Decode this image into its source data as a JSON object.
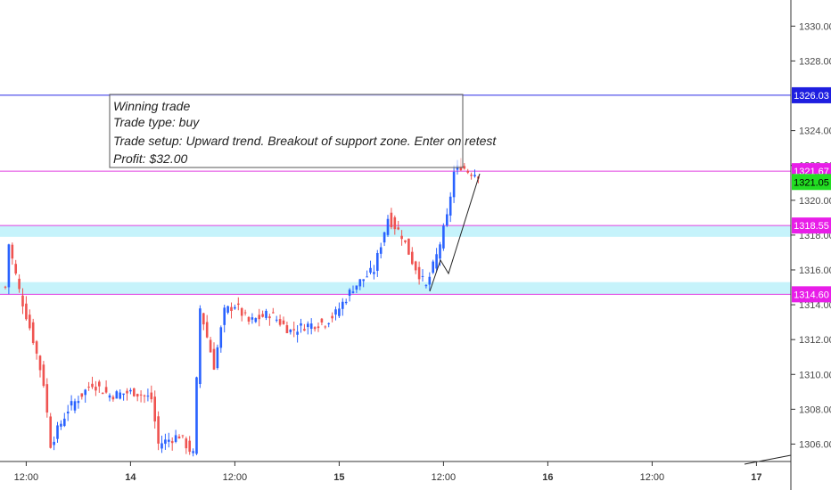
{
  "chart_data": {
    "type": "candlestick",
    "symbol_hint": "",
    "ylim": [
      1305.0,
      1331.5
    ],
    "y_ticks": [
      1306,
      1308,
      1310,
      1312,
      1314,
      1316,
      1318,
      1320,
      1322,
      1324,
      1328,
      1330
    ],
    "y_tick_labels": [
      "1306.00",
      "1308.00",
      "1310.00",
      "1312.00",
      "1314.00",
      "1316.00",
      "1318.00",
      "1320.00",
      "1322.00",
      "1324.00",
      "1328.00",
      "1330.00"
    ],
    "x_ticks": [
      {
        "label": "12:00",
        "bar": 6,
        "bold": false
      },
      {
        "label": "14",
        "bar": 36,
        "bold": true
      },
      {
        "label": "12:00",
        "bar": 66,
        "bold": false
      },
      {
        "label": "15",
        "bar": 96,
        "bold": true
      },
      {
        "label": "12:00",
        "bar": 126,
        "bold": false
      },
      {
        "label": "16",
        "bar": 156,
        "bold": true
      },
      {
        "label": "12:00",
        "bar": 186,
        "bold": false
      },
      {
        "label": "17",
        "bar": 216,
        "bold": true
      }
    ],
    "bars_visible": 230,
    "candle_anchors": [
      [
        0,
        1315.0
      ],
      [
        1,
        1317.5
      ],
      [
        4,
        1314.8
      ],
      [
        8,
        1312.0
      ],
      [
        11,
        1309.5
      ],
      [
        13,
        1306.0
      ],
      [
        18,
        1308.0
      ],
      [
        25,
        1309.5
      ],
      [
        30,
        1308.8
      ],
      [
        37,
        1309.0
      ],
      [
        42,
        1308.6
      ],
      [
        44,
        1306.0
      ],
      [
        50,
        1306.5
      ],
      [
        54,
        1305.4
      ],
      [
        56,
        1313.8
      ],
      [
        60,
        1310.5
      ],
      [
        63,
        1313.6
      ],
      [
        66,
        1314.0
      ],
      [
        70,
        1313.0
      ],
      [
        76,
        1313.5
      ],
      [
        82,
        1312.5
      ],
      [
        86,
        1312.8
      ],
      [
        92,
        1313.0
      ],
      [
        95,
        1313.5
      ],
      [
        100,
        1315.0
      ],
      [
        106,
        1316.0
      ],
      [
        110,
        1319.0
      ],
      [
        114,
        1318.0
      ],
      [
        117,
        1316.5
      ],
      [
        121,
        1315.0
      ],
      [
        124,
        1316.8
      ],
      [
        127,
        1319.0
      ],
      [
        129,
        1321.6
      ],
      [
        131,
        1322.0
      ],
      [
        133,
        1321.67
      ],
      [
        136,
        1321.5
      ]
    ],
    "horizontal_lines": [
      {
        "price": 1326.03,
        "color": "#2a2ae6",
        "label": "1326.03",
        "tag_bg": "#1e1ee0"
      },
      {
        "price": 1321.67,
        "color": "#e040e0",
        "label": "1321.67",
        "tag_bg": "#e81ee8"
      },
      {
        "price": 1318.55,
        "color": "#e040e0",
        "label": "1318.55",
        "tag_bg": "#e81ee8"
      },
      {
        "price": 1314.6,
        "color": "#e040e0",
        "label": "1314.60",
        "tag_bg": "#e81ee8"
      }
    ],
    "current_price": {
      "price": 1321.05,
      "label": "1321.05",
      "tag_bg": "#22dd22"
    },
    "support_zones": [
      {
        "from": 1317.9,
        "to": 1318.55,
        "color": "#c6f3fb"
      },
      {
        "from": 1314.6,
        "to": 1315.3,
        "color": "#c6f3fb"
      }
    ],
    "colors": {
      "up": "#2962ff",
      "down": "#ef5350",
      "grid": "#e0e0e0"
    }
  },
  "annotation": {
    "lines": [
      "Winning trade",
      "Trade type: buy",
      "Trade setup: Upward trend. Breakout of support zone. Enter on retest",
      "Profit: $32.00"
    ]
  }
}
